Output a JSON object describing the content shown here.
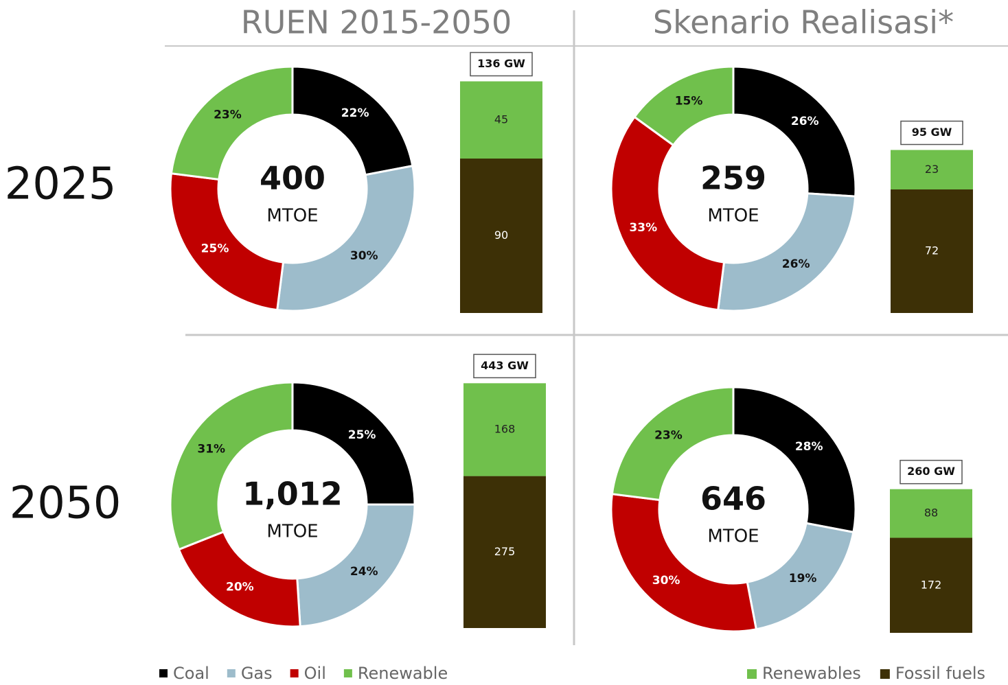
{
  "columns": [
    "RUEN 2015-2050",
    "Skenario Realisasi*"
  ],
  "rows": [
    "2025",
    "2050"
  ],
  "donut_legend": {
    "categories": [
      "Coal",
      "Gas",
      "Oil",
      "Renewable"
    ],
    "colors": [
      "#000000",
      "#9dbccb",
      "#c00000",
      "#70c04c"
    ]
  },
  "bar_legend": {
    "names": [
      "Renewables",
      "Fossil fuels"
    ],
    "colors": [
      "#70c04c",
      "#3d3006"
    ]
  },
  "chart_data": [
    {
      "type": "donut",
      "center": "400",
      "unit": "MTOE",
      "values": [
        22,
        30,
        25,
        23
      ],
      "value_labels": [
        "22%",
        "30%",
        "25%",
        "23%"
      ]
    },
    {
      "type": "stacked_bar",
      "total_label": "136 GW",
      "values": [
        45,
        90
      ],
      "ylim": [
        0,
        152
      ]
    },
    {
      "type": "donut",
      "center": "259",
      "unit": "MTOE",
      "values": [
        26,
        26,
        33,
        15
      ],
      "value_labels": [
        "26%",
        "26%",
        "33%",
        "15%"
      ]
    },
    {
      "type": "stacked_bar",
      "total_label": "95 GW",
      "values": [
        23,
        72
      ],
      "ylim": [
        0,
        152
      ]
    },
    {
      "type": "donut",
      "center": "1,012",
      "unit": "MTOE",
      "values": [
        25,
        24,
        20,
        31
      ],
      "value_labels": [
        "25%",
        "24%",
        "20%",
        "31%"
      ]
    },
    {
      "type": "stacked_bar",
      "total_label": "443 GW",
      "values": [
        168,
        275
      ],
      "ylim": [
        0,
        472
      ]
    },
    {
      "type": "donut",
      "center": "646",
      "unit": "MTOE",
      "values": [
        28,
        19,
        30,
        23
      ],
      "value_labels": [
        "28%",
        "19%",
        "30%",
        "23%"
      ]
    },
    {
      "type": "stacked_bar",
      "total_label": "260 GW",
      "values": [
        88,
        172
      ],
      "ylim": [
        0,
        472
      ]
    }
  ]
}
